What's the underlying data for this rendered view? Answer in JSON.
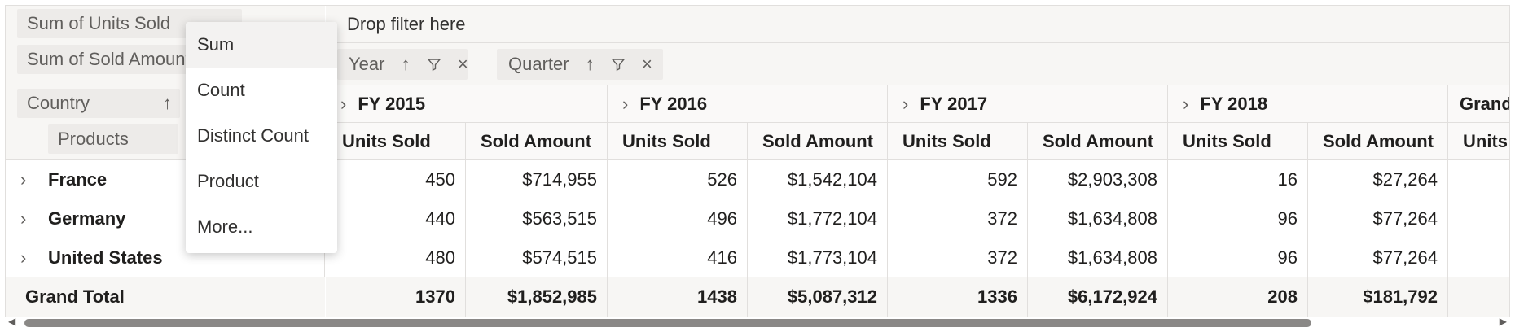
{
  "value_fields": [
    "Sum of Units Sold",
    "Sum of Sold Amount"
  ],
  "row_fields": {
    "country": "Country",
    "products": "Products",
    "sort_icon": "↑"
  },
  "filter_area": {
    "placeholder": "Drop filter here"
  },
  "column_fields": [
    {
      "label": "Year",
      "icons": [
        "↑",
        "filter",
        "×"
      ]
    },
    {
      "label": "Quarter",
      "icons": [
        "↑",
        "filter",
        "×"
      ]
    }
  ],
  "years": [
    "FY 2015",
    "FY 2016",
    "FY 2017",
    "FY 2018",
    "Grand"
  ],
  "measures": [
    "Units Sold",
    "Sold Amount",
    "Units Sold",
    "Sold Amount",
    "Units Sold",
    "Sold Amount",
    "Units Sold",
    "Sold Amount",
    "Units S"
  ],
  "rows": [
    {
      "label": "France",
      "values": [
        "450",
        "$714,955",
        "526",
        "$1,542,104",
        "592",
        "$2,903,308",
        "16",
        "$27,264"
      ]
    },
    {
      "label": "Germany",
      "values": [
        "440",
        "$563,515",
        "496",
        "$1,772,104",
        "372",
        "$1,634,808",
        "96",
        "$77,264"
      ]
    },
    {
      "label": "United States",
      "values": [
        "480",
        "$574,515",
        "416",
        "$1,773,104",
        "372",
        "$1,634,808",
        "96",
        "$77,264"
      ]
    }
  ],
  "grand_total": {
    "label": "Grand Total",
    "values": [
      "1370",
      "$1,852,985",
      "1438",
      "$5,087,312",
      "1336",
      "$6,172,924",
      "208",
      "$181,792"
    ]
  },
  "aggregation_menu": {
    "items": [
      "Sum",
      "Count",
      "Distinct Count",
      "Product",
      "More..."
    ],
    "selected": "Sum"
  },
  "colors": {
    "header_bg": "#f7f6f4",
    "pill_bg": "#edebe9",
    "border": "#e1dfdd",
    "scroll_thumb": "#8a8886"
  }
}
